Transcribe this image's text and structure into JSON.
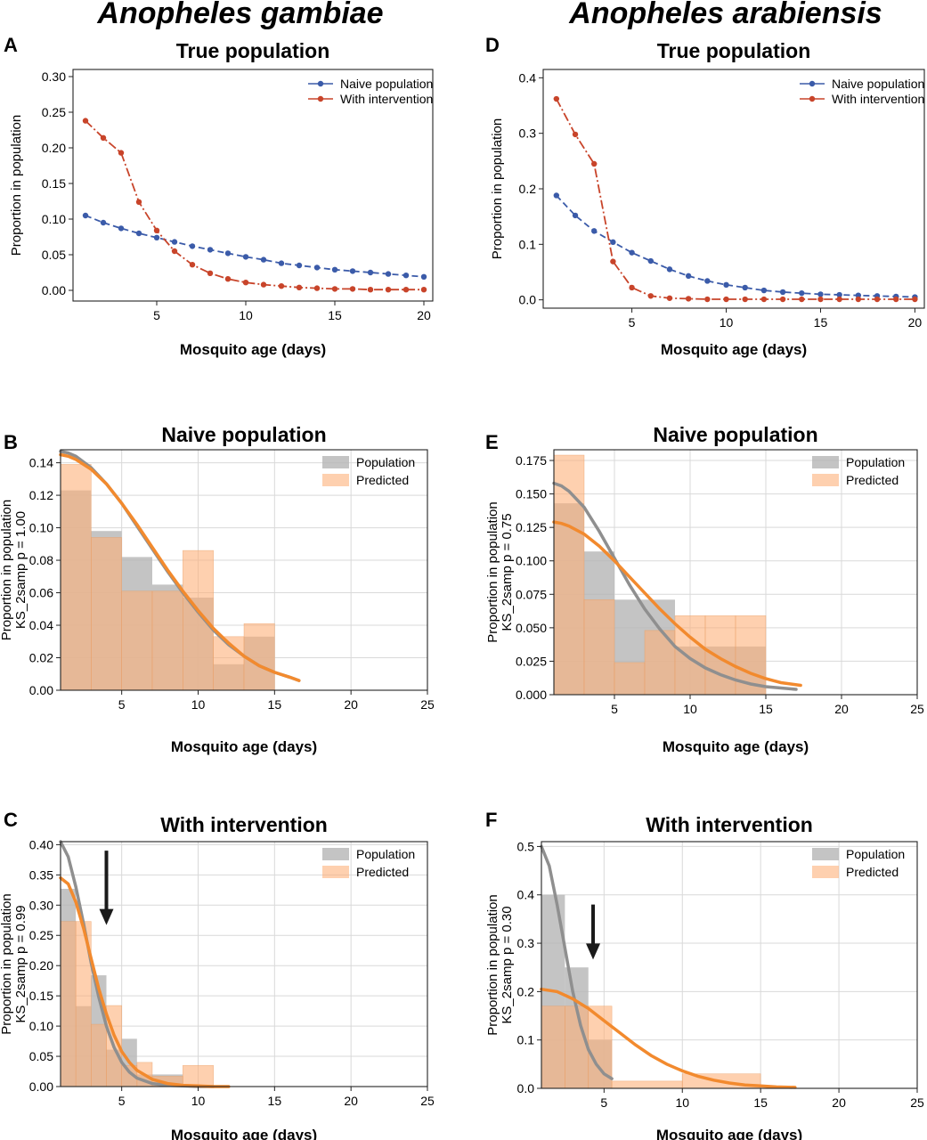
{
  "species": {
    "left": "Anopheles gambiae",
    "right": "Anopheles arabiensis"
  },
  "colors": {
    "naive": "#3b5ba9",
    "intervention": "#c8442a",
    "population": "#b5b5b5",
    "predicted": "#fdb07a",
    "pop_curve": "#8f8f8f",
    "pred_curve": "#f28a2e",
    "arrow": "#1a1a1a"
  },
  "chart_data": [
    {
      "panel": "A",
      "type": "line",
      "title": "True population",
      "xlabel": "Mosquito age (days)",
      "ylabel": "Proportion in population",
      "xlim": [
        0.3,
        20.5
      ],
      "ylim": [
        -0.015,
        0.31
      ],
      "xticks": [
        5,
        10,
        15,
        20
      ],
      "yticks": [
        0.0,
        0.05,
        0.1,
        0.15,
        0.2,
        0.25,
        0.3
      ],
      "ytick_labels": [
        "0.00",
        "0.05",
        "0.10",
        "0.15",
        "0.20",
        "0.25",
        "0.30"
      ],
      "grid": false,
      "legend": "top-right",
      "x": [
        1,
        2,
        3,
        4,
        5,
        6,
        7,
        8,
        9,
        10,
        11,
        12,
        13,
        14,
        15,
        16,
        17,
        18,
        19,
        20
      ],
      "series": [
        {
          "name": "Naive population",
          "color_key": "naive",
          "values": [
            0.105,
            0.095,
            0.087,
            0.08,
            0.074,
            0.068,
            0.062,
            0.057,
            0.052,
            0.047,
            0.043,
            0.038,
            0.035,
            0.032,
            0.029,
            0.027,
            0.025,
            0.023,
            0.021,
            0.019
          ]
        },
        {
          "name": "With intervention",
          "color_key": "intervention",
          "values": [
            0.238,
            0.214,
            0.193,
            0.124,
            0.084,
            0.055,
            0.036,
            0.024,
            0.016,
            0.011,
            0.008,
            0.006,
            0.004,
            0.003,
            0.002,
            0.002,
            0.001,
            0.001,
            0.001,
            0.001
          ]
        }
      ]
    },
    {
      "panel": "D",
      "type": "line",
      "title": "True population",
      "xlabel": "Mosquito age (days)",
      "ylabel": "Proportion in population",
      "xlim": [
        0.3,
        20.5
      ],
      "ylim": [
        -0.015,
        0.415
      ],
      "xticks": [
        5,
        10,
        15,
        20
      ],
      "yticks": [
        0.0,
        0.1,
        0.2,
        0.3,
        0.4
      ],
      "ytick_labels": [
        "0.0",
        "0.1",
        "0.2",
        "0.3",
        "0.4"
      ],
      "grid": false,
      "legend": "top-right",
      "x": [
        1,
        2,
        3,
        4,
        5,
        6,
        7,
        8,
        9,
        10,
        11,
        12,
        13,
        14,
        15,
        16,
        17,
        18,
        19,
        20
      ],
      "series": [
        {
          "name": "Naive population",
          "color_key": "naive",
          "values": [
            0.188,
            0.152,
            0.124,
            0.104,
            0.085,
            0.07,
            0.055,
            0.043,
            0.034,
            0.027,
            0.022,
            0.017,
            0.014,
            0.012,
            0.01,
            0.009,
            0.008,
            0.007,
            0.006,
            0.005
          ]
        },
        {
          "name": "With intervention",
          "color_key": "intervention",
          "values": [
            0.362,
            0.298,
            0.245,
            0.069,
            0.022,
            0.007,
            0.003,
            0.002,
            0.001,
            0.001,
            0.001,
            0.001,
            0.001,
            0.001,
            0.001,
            0.001,
            0.001,
            0.001,
            0.001,
            0.001
          ]
        }
      ]
    },
    {
      "panel": "B",
      "type": "bar",
      "title": "Naive population",
      "xlabel": "Mosquito age (days)",
      "ylabel": "Proportion in population",
      "ylabel2": "KS_2samp p = 1.00",
      "xlim": [
        1,
        25
      ],
      "ylim": [
        0,
        0.148
      ],
      "xticks": [
        5,
        10,
        15,
        20,
        25
      ],
      "yticks": [
        0.0,
        0.02,
        0.04,
        0.06,
        0.08,
        0.1,
        0.12,
        0.14
      ],
      "ytick_labels": [
        "0.00",
        "0.02",
        "0.04",
        "0.06",
        "0.08",
        "0.10",
        "0.12",
        "0.14"
      ],
      "grid": true,
      "legend": "top-right",
      "bin_edges": [
        1,
        3,
        5,
        7,
        9,
        11,
        13,
        15
      ],
      "series": [
        {
          "name": "Population",
          "color_key": "population",
          "values": [
            0.123,
            0.098,
            0.082,
            0.065,
            0.057,
            0.016,
            0.033
          ]
        },
        {
          "name": "Predicted",
          "color_key": "predicted",
          "values": [
            0.139,
            0.094,
            0.061,
            0.061,
            0.086,
            0.033,
            0.041
          ]
        }
      ],
      "curves": [
        {
          "color_key": "pop_curve",
          "x": [
            1,
            1.5,
            2,
            3,
            4,
            5,
            6,
            7,
            8,
            9,
            10,
            11,
            12,
            13,
            14,
            15,
            16,
            16.6
          ],
          "y": [
            0.147,
            0.146,
            0.144,
            0.137,
            0.127,
            0.115,
            0.101,
            0.087,
            0.073,
            0.06,
            0.048,
            0.037,
            0.028,
            0.021,
            0.015,
            0.011,
            0.008,
            0.006
          ]
        },
        {
          "color_key": "pred_curve",
          "x": [
            1,
            1.5,
            2,
            3,
            4,
            5,
            6,
            7,
            8,
            9,
            10,
            11,
            12,
            13,
            14,
            15,
            16,
            16.6
          ],
          "y": [
            0.145,
            0.144,
            0.142,
            0.136,
            0.127,
            0.115,
            0.102,
            0.088,
            0.074,
            0.061,
            0.049,
            0.038,
            0.029,
            0.021,
            0.015,
            0.011,
            0.008,
            0.006
          ]
        }
      ]
    },
    {
      "panel": "E",
      "type": "bar",
      "title": "Naive population",
      "xlabel": "Mosquito age (days)",
      "ylabel": "Proportion in population",
      "ylabel2": "KS_2samp p = 0.75",
      "xlim": [
        1,
        25
      ],
      "ylim": [
        0,
        0.183
      ],
      "xticks": [
        5,
        10,
        15,
        20,
        25
      ],
      "yticks": [
        0.0,
        0.025,
        0.05,
        0.075,
        0.1,
        0.125,
        0.15,
        0.175
      ],
      "ytick_labels": [
        "0.000",
        "0.025",
        "0.050",
        "0.075",
        "0.100",
        "0.125",
        "0.150",
        "0.175"
      ],
      "grid": true,
      "legend": "top-right",
      "bin_edges": [
        1,
        3,
        5,
        7,
        9,
        11,
        13,
        15
      ],
      "series": [
        {
          "name": "Population",
          "color_key": "population",
          "values": [
            0.143,
            0.107,
            0.071,
            0.071,
            0.036,
            0.036,
            0.036
          ]
        },
        {
          "name": "Predicted",
          "color_key": "predicted",
          "values": [
            0.179,
            0.071,
            0.024,
            0.048,
            0.059,
            0.059,
            0.059
          ]
        }
      ],
      "curves": [
        {
          "color_key": "pop_curve",
          "x": [
            1,
            1.5,
            2,
            3,
            4,
            5,
            6,
            7,
            8,
            9,
            10,
            11,
            12,
            13,
            14,
            15,
            16,
            17
          ],
          "y": [
            0.158,
            0.156,
            0.152,
            0.14,
            0.122,
            0.102,
            0.082,
            0.064,
            0.049,
            0.036,
            0.027,
            0.02,
            0.015,
            0.011,
            0.008,
            0.006,
            0.005,
            0.004
          ]
        },
        {
          "color_key": "pred_curve",
          "x": [
            1,
            1.5,
            2,
            3,
            4,
            5,
            6,
            7,
            8,
            9,
            10,
            11,
            12,
            13,
            14,
            15,
            16,
            17.3
          ],
          "y": [
            0.129,
            0.128,
            0.126,
            0.12,
            0.111,
            0.1,
            0.088,
            0.076,
            0.064,
            0.053,
            0.043,
            0.034,
            0.027,
            0.021,
            0.016,
            0.012,
            0.009,
            0.007
          ]
        }
      ]
    },
    {
      "panel": "C",
      "type": "bar",
      "title": "With intervention",
      "xlabel": "Mosquito age (days)",
      "ylabel": "Proportion in population",
      "ylabel2": "KS_2samp p = 0.99",
      "xlim": [
        1,
        25
      ],
      "ylim": [
        0,
        0.405
      ],
      "xticks": [
        5,
        10,
        15,
        20,
        25
      ],
      "yticks": [
        0.0,
        0.05,
        0.1,
        0.15,
        0.2,
        0.25,
        0.3,
        0.35,
        0.4
      ],
      "ytick_labels": [
        "0.00",
        "0.05",
        "0.10",
        "0.15",
        "0.20",
        "0.25",
        "0.30",
        "0.35",
        "0.40"
      ],
      "grid": true,
      "legend": "top-right",
      "bin_edges": [
        1,
        2,
        3,
        4,
        5,
        6,
        7,
        9,
        11
      ],
      "series": [
        {
          "name": "Population",
          "color_key": "population",
          "values": [
            0.327,
            0.133,
            0.184,
            0.061,
            0.079,
            0.02,
            0.02,
            0.0
          ]
        },
        {
          "name": "Predicted",
          "color_key": "predicted",
          "values": [
            0.273,
            0.273,
            0.103,
            0.134,
            0.035,
            0.04,
            0.017,
            0.035
          ]
        }
      ],
      "curves": [
        {
          "color_key": "pop_curve",
          "x": [
            1,
            1.5,
            2,
            2.5,
            3,
            3.5,
            4,
            4.5,
            5,
            5.5,
            6,
            7,
            8,
            9,
            10,
            11
          ],
          "y": [
            0.405,
            0.38,
            0.33,
            0.27,
            0.205,
            0.148,
            0.1,
            0.065,
            0.04,
            0.024,
            0.014,
            0.005,
            0.002,
            0.001,
            0.0,
            0.0
          ]
        },
        {
          "color_key": "pred_curve",
          "x": [
            1,
            1.5,
            2,
            2.5,
            3,
            3.5,
            4,
            4.5,
            5,
            5.5,
            6,
            7,
            8,
            9,
            10,
            11,
            12
          ],
          "y": [
            0.345,
            0.335,
            0.305,
            0.262,
            0.212,
            0.162,
            0.12,
            0.085,
            0.058,
            0.04,
            0.027,
            0.012,
            0.005,
            0.002,
            0.001,
            0.0,
            0.0
          ]
        }
      ],
      "arrow": {
        "x": 4.0,
        "y_from": 0.39,
        "y_to": 0.27
      }
    },
    {
      "panel": "F",
      "type": "bar",
      "title": "With intervention",
      "xlabel": "Mosquito age (days)",
      "ylabel": "Proportion in population",
      "ylabel2": "KS_2samp p = 0.30",
      "xlim": [
        1,
        25
      ],
      "ylim": [
        0,
        0.51
      ],
      "xticks": [
        5,
        10,
        15,
        20,
        25
      ],
      "yticks": [
        0.0,
        0.1,
        0.2,
        0.3,
        0.4,
        0.5
      ],
      "ytick_labels": [
        "0.0",
        "0.1",
        "0.2",
        "0.3",
        "0.4",
        "0.5"
      ],
      "grid": true,
      "legend": "top-right",
      "bin_edges": [
        1,
        2.5,
        4,
        5.5,
        10,
        15
      ],
      "series": [
        {
          "name": "Population",
          "color_key": "population",
          "values": [
            0.4,
            0.25,
            0.1,
            0.0,
            0.0
          ]
        },
        {
          "name": "Predicted",
          "color_key": "predicted",
          "values": [
            0.17,
            0.17,
            0.17,
            0.015,
            0.03
          ]
        }
      ],
      "curves": [
        {
          "color_key": "pop_curve",
          "x": [
            1,
            1.5,
            2,
            2.5,
            3,
            3.5,
            4,
            4.5,
            5,
            5.5
          ],
          "y": [
            0.5,
            0.46,
            0.38,
            0.29,
            0.2,
            0.13,
            0.08,
            0.05,
            0.03,
            0.02
          ]
        },
        {
          "color_key": "pred_curve",
          "x": [
            1,
            2,
            3,
            4,
            5,
            6,
            7,
            8,
            9,
            10,
            11,
            12,
            13,
            14,
            15,
            16,
            17.2
          ],
          "y": [
            0.205,
            0.2,
            0.185,
            0.165,
            0.14,
            0.115,
            0.09,
            0.068,
            0.05,
            0.036,
            0.025,
            0.017,
            0.011,
            0.007,
            0.005,
            0.003,
            0.002
          ]
        }
      ],
      "arrow": {
        "x": 4.3,
        "y_from": 0.38,
        "y_to": 0.27
      }
    }
  ]
}
